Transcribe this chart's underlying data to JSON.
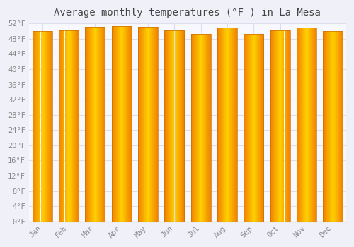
{
  "title": "Average monthly temperatures (°F ) in La Mesa",
  "months": [
    "Jan",
    "Feb",
    "Mar",
    "Apr",
    "May",
    "Jun",
    "Jul",
    "Aug",
    "Sep",
    "Oct",
    "Nov",
    "Dec"
  ],
  "values": [
    50.0,
    50.2,
    51.2,
    51.3,
    51.1,
    50.1,
    49.2,
    51.0,
    49.3,
    50.1,
    51.0,
    50.0
  ],
  "bar_color_center": "#FFD000",
  "bar_color_edge": "#F08000",
  "bar_border_color": "#CC7000",
  "background_color": "#F0F0F8",
  "plot_bg_color": "#F8F8FF",
  "grid_color": "#DDDDEE",
  "text_color": "#888888",
  "ylim": [
    0,
    52
  ],
  "ytick_step": 4,
  "title_fontsize": 10,
  "tick_fontsize": 7.5
}
